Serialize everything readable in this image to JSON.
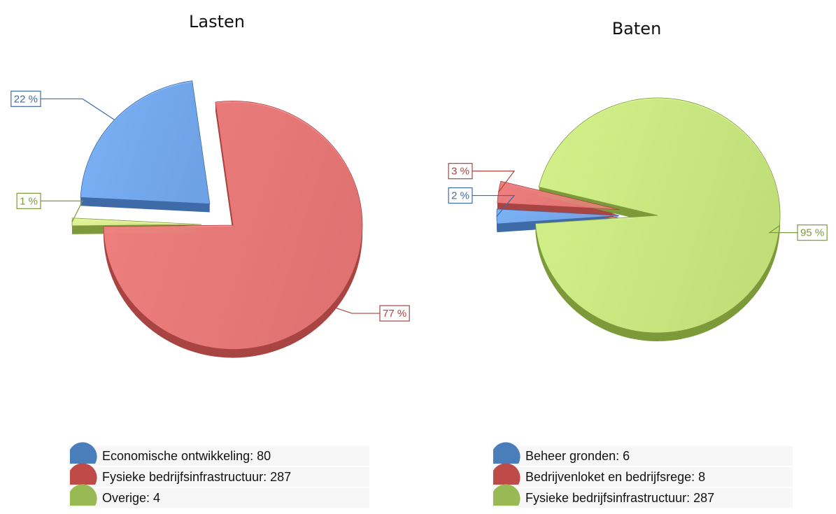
{
  "chart_data": [
    {
      "type": "pie",
      "title": "Lasten",
      "categories": [
        "Economische ontwikkeling: 80",
        "Fysieke bedrijfsinfrastructuur: 287",
        "Overige: 4"
      ],
      "values": [
        22,
        77,
        1
      ],
      "value_labels": [
        "22 %",
        "77 %",
        "1 %"
      ],
      "colors": [
        "#7cb2f7",
        "#f08080",
        "#e6f59a"
      ],
      "side_colors": [
        "#3f6aa8",
        "#a84442",
        "#7d9a3a"
      ],
      "legend_colors": [
        "#4a7ebb",
        "#be4b48",
        "#98b954"
      ]
    },
    {
      "type": "pie",
      "title": "Baten",
      "categories": [
        "Beheer gronden: 6",
        "Bedrijvenloket en bedrijfsrege: 8",
        "Fysieke bedrijfsinfrastructuur: 287"
      ],
      "values": [
        2,
        3,
        95
      ],
      "value_labels": [
        "2 %",
        "3 %",
        "95 %"
      ],
      "colors": [
        "#7cb2f7",
        "#f08080",
        "#d4f28a"
      ],
      "side_colors": [
        "#3f6aa8",
        "#a84442",
        "#7d9a3a"
      ],
      "legend_colors": [
        "#4a7ebb",
        "#be4b48",
        "#98b954"
      ]
    }
  ]
}
